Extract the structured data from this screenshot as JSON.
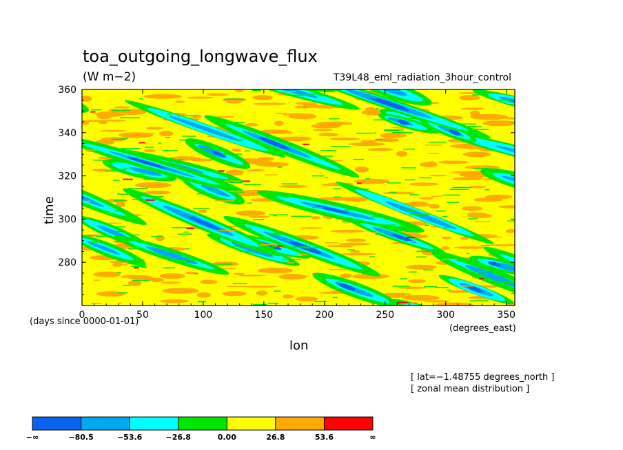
{
  "chart_data": {
    "type": "heatmap",
    "title": "toa_outgoing_longwave_flux",
    "units": "(W m−2)",
    "subtitle": "T39L48_eml_radiation_3hour_control",
    "xlabel": "lon",
    "x_units": "(degrees_east)",
    "ylabel": "time",
    "y_units": "(days since 0000-01-01)",
    "xlim": [
      0,
      357
    ],
    "ylim": [
      260,
      360
    ],
    "x_ticks": [
      0,
      50,
      100,
      150,
      200,
      250,
      300,
      350
    ],
    "y_ticks": [
      280,
      300,
      320,
      340,
      360
    ],
    "annotations": [
      "[ lat=−1.48755 degrees_north ]",
      "[ zonal mean distribution ]"
    ],
    "colorbar": {
      "labels": [
        "−∞",
        "−80.5",
        "−53.6",
        "−26.8",
        "0.00",
        "26.8",
        "53.6",
        "∞"
      ],
      "colors": [
        "#0a64f0",
        "#00a8f0",
        "#00ffff",
        "#00e600",
        "#ffff00",
        "#ffaa00",
        "#ff0000"
      ]
    },
    "field_description_shown": "eastward-tilted (west-to-east propagating) bands of low OLR anomalies (blue/cyan) over a mostly yellow/orange background"
  }
}
